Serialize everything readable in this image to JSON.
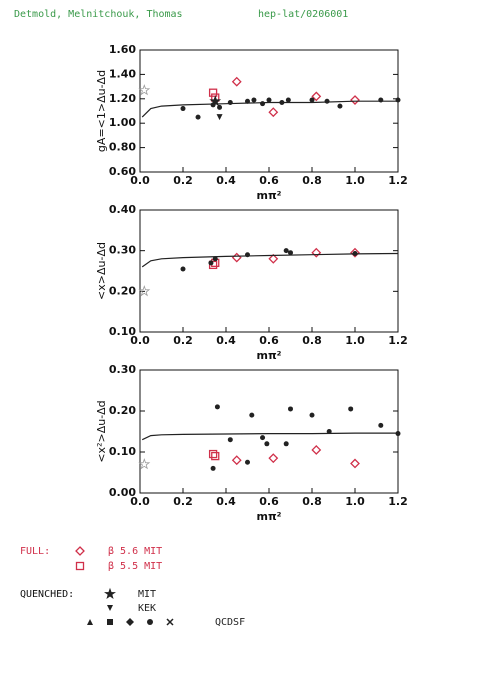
{
  "header": {
    "authors": "Detmold, Melnitchouk, Thomas",
    "reference": "hep-lat/0206001"
  },
  "legend": {
    "full_label": "FULL:",
    "quenched_label": "QUENCHED:"
  },
  "chart_data": [
    {
      "type": "scatter",
      "ylabel": "gA=<1>Δu-Δd",
      "xlabel": "mπ²",
      "xlim": [
        0,
        1.2
      ],
      "xticks": [
        {
          "value": 0,
          "label": "0.0"
        },
        0.2,
        0.4,
        0.6,
        0.8,
        {
          "value": 1,
          "label": "1.0"
        },
        1.2
      ],
      "ylim": [
        0.6,
        1.6
      ],
      "yticks": [
        {
          "value": 0.6,
          "label": "0.60"
        },
        {
          "value": 0.8,
          "label": "0.80"
        },
        {
          "value": 1,
          "label": "1.00"
        },
        {
          "value": 1.2,
          "label": "1.20"
        },
        {
          "value": 1.4,
          "label": "1.40"
        },
        {
          "value": 1.6,
          "label": "1.60"
        }
      ],
      "series": [
        {
          "name": "β 5.6 MIT",
          "color": "#d0304a",
          "marker": "diamond",
          "x": [
            0.45,
            0.62,
            0.82,
            1.0
          ],
          "values": [
            1.34,
            1.09,
            1.22,
            1.19
          ]
        },
        {
          "name": "β 5.5 MIT",
          "color": "#d0304a",
          "marker": "square",
          "x": [
            0.34,
            0.35
          ],
          "values": [
            1.25,
            1.21
          ]
        },
        {
          "name": "MIT",
          "color": "#222222",
          "marker": "star",
          "x": [
            0.35
          ],
          "values": [
            1.18
          ]
        },
        {
          "name": "KEK",
          "color": "#222222",
          "marker": "triangle-down",
          "x": [
            0.37
          ],
          "values": [
            1.05
          ]
        },
        {
          "name": "QCDSF",
          "color": "#222222",
          "marker": "circle",
          "x": [
            0.2,
            0.27,
            0.34,
            0.37,
            0.42,
            0.5,
            0.53,
            0.57,
            0.6,
            0.66,
            0.69,
            0.8,
            0.87,
            0.93,
            1.12,
            1.2
          ],
          "values": [
            1.12,
            1.05,
            1.15,
            1.13,
            1.17,
            1.18,
            1.19,
            1.16,
            1.19,
            1.17,
            1.19,
            1.19,
            1.18,
            1.14,
            1.19,
            1.19
          ]
        },
        {
          "color": "#999999",
          "marker": "open-star",
          "x": [
            0.02
          ],
          "values": [
            1.27
          ]
        },
        {
          "color": "#222222",
          "marker": "line",
          "x": [
            0.01,
            0.05,
            0.1,
            0.2,
            0.4,
            0.6,
            0.8,
            1.0,
            1.2
          ],
          "values": [
            1.05,
            1.12,
            1.14,
            1.15,
            1.16,
            1.17,
            1.17,
            1.18,
            1.18
          ]
        }
      ]
    },
    {
      "type": "scatter",
      "ylabel": "<x>Δu-Δd",
      "xlabel": "mπ²",
      "xlim": [
        0,
        1.2
      ],
      "xticks": [
        {
          "value": 0,
          "label": "0.0"
        },
        0.2,
        0.4,
        0.6,
        0.8,
        {
          "value": 1,
          "label": "1.0"
        },
        1.2
      ],
      "ylim": [
        0.1,
        0.4
      ],
      "yticks": [
        {
          "value": 0.1,
          "label": "0.10"
        },
        {
          "value": 0.2,
          "label": "0.20"
        },
        {
          "value": 0.3,
          "label": "0.30"
        },
        {
          "value": 0.4,
          "label": "0.40"
        }
      ],
      "series": [
        {
          "color": "#d0304a",
          "marker": "diamond",
          "x": [
            0.45,
            0.62,
            0.82,
            1.0
          ],
          "values": [
            0.283,
            0.28,
            0.295,
            0.295
          ]
        },
        {
          "color": "#d0304a",
          "marker": "square",
          "x": [
            0.34,
            0.35
          ],
          "values": [
            0.265,
            0.27
          ]
        },
        {
          "color": "#222222",
          "marker": "circle",
          "x": [
            0.2,
            0.33,
            0.35,
            0.5,
            0.68,
            0.7,
            1.0
          ],
          "values": [
            0.255,
            0.27,
            0.28,
            0.29,
            0.3,
            0.295,
            0.293
          ]
        },
        {
          "color": "#999999",
          "marker": "open-star",
          "x": [
            0.02
          ],
          "values": [
            0.2
          ]
        },
        {
          "color": "#222222",
          "marker": "line",
          "x": [
            0.01,
            0.05,
            0.1,
            0.2,
            0.4,
            0.6,
            0.8,
            1.0,
            1.2
          ],
          "values": [
            0.26,
            0.275,
            0.28,
            0.283,
            0.286,
            0.288,
            0.29,
            0.292,
            0.293
          ]
        }
      ]
    },
    {
      "type": "scatter",
      "ylabel": "<x²>Δu-Δd",
      "xlabel": "mπ²",
      "xlim": [
        0,
        1.2
      ],
      "xticks": [
        {
          "value": 0,
          "label": "0.0"
        },
        0.2,
        0.4,
        0.6,
        0.8,
        {
          "value": 1,
          "label": "1.0"
        },
        1.2
      ],
      "ylim": [
        0,
        0.3
      ],
      "yticks": [
        {
          "value": 0,
          "label": "0.00"
        },
        {
          "value": 0.1,
          "label": "0.10"
        },
        {
          "value": 0.2,
          "label": "0.20"
        },
        {
          "value": 0.3,
          "label": "0.30"
        }
      ],
      "series": [
        {
          "color": "#d0304a",
          "marker": "diamond",
          "x": [
            0.45,
            0.62,
            0.82,
            1.0
          ],
          "values": [
            0.08,
            0.085,
            0.105,
            0.072
          ]
        },
        {
          "color": "#d0304a",
          "marker": "square",
          "x": [
            0.34,
            0.35
          ],
          "values": [
            0.095,
            0.09
          ]
        },
        {
          "color": "#222222",
          "marker": "circle",
          "x": [
            0.34,
            0.36,
            0.42,
            0.5,
            0.52,
            0.57,
            0.59,
            0.68,
            0.7,
            0.8,
            0.88,
            0.98,
            1.12,
            1.2
          ],
          "values": [
            0.06,
            0.21,
            0.13,
            0.075,
            0.19,
            0.135,
            0.12,
            0.12,
            0.205,
            0.19,
            0.15,
            0.205,
            0.165,
            0.145
          ]
        },
        {
          "color": "#999999",
          "marker": "open-star",
          "x": [
            0.02
          ],
          "values": [
            0.07
          ]
        },
        {
          "color": "#222222",
          "marker": "line",
          "x": [
            0.01,
            0.05,
            0.1,
            0.2,
            0.4,
            0.6,
            0.8,
            1.0,
            1.2
          ],
          "values": [
            0.13,
            0.14,
            0.142,
            0.143,
            0.144,
            0.145,
            0.145,
            0.146,
            0.146
          ]
        }
      ]
    }
  ]
}
